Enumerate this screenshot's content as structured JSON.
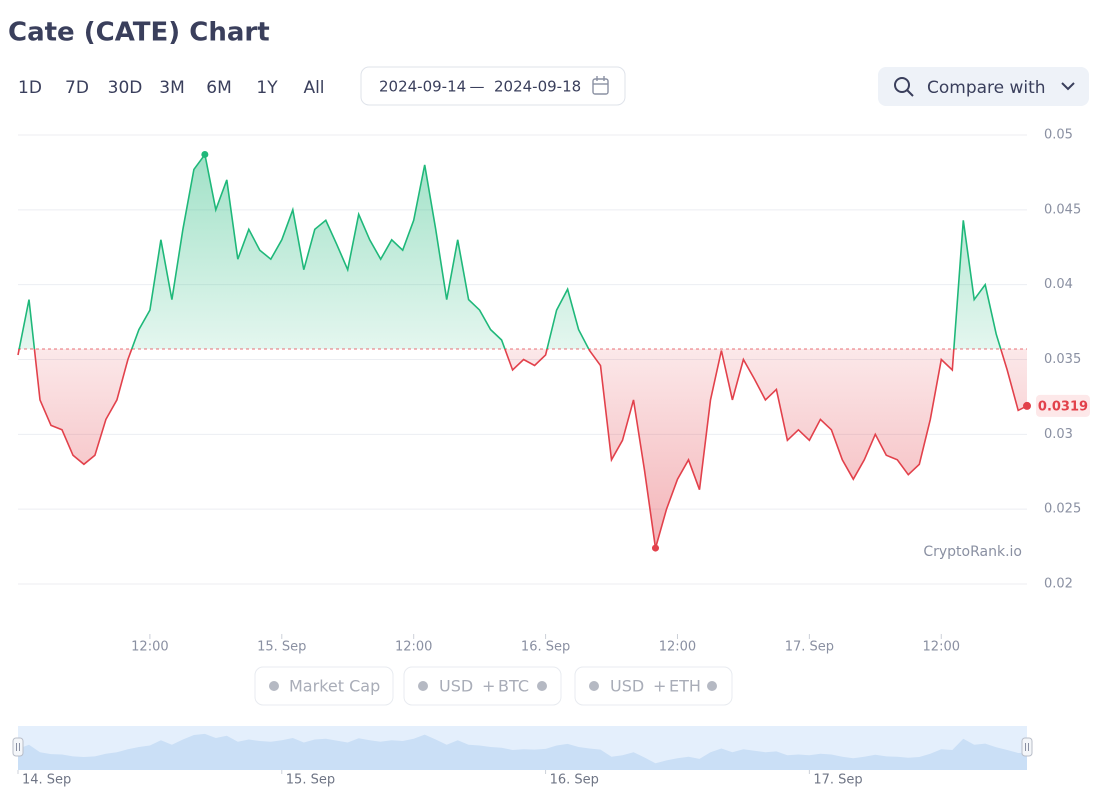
{
  "header": {
    "ranges": [
      "1D",
      "7D",
      "30D",
      "3M",
      "6M",
      "1Y",
      "All"
    ],
    "date_from": "2024-09-14",
    "date_sep": "—",
    "date_to": "2024-09-18",
    "compare": "Compare with"
  },
  "toggles": {
    "market_cap": "Market Cap",
    "btc": [
      "USD",
      "+",
      "BTC"
    ],
    "eth": [
      "USD",
      "+",
      "ETH"
    ]
  },
  "chart_data": {
    "type": "baseline-line",
    "title": "Cate (CATE) Chart",
    "watermark": "CryptoRank.io",
    "up_color": "#1fb87a",
    "down_color": "#e2414b",
    "baseline": 0.0357,
    "x": [
      0,
      1,
      2,
      3,
      4,
      5,
      6,
      7,
      8,
      9,
      10,
      11,
      12,
      13,
      14,
      15,
      16,
      17,
      18,
      19,
      20,
      21,
      22,
      23,
      24,
      25,
      26,
      27,
      28,
      29,
      30,
      31,
      32,
      33,
      34,
      35,
      36,
      37,
      38,
      39,
      40,
      41,
      42,
      43,
      44,
      45,
      46,
      47,
      48,
      49,
      50,
      51,
      52,
      53,
      54,
      55,
      56,
      57,
      58,
      59,
      60,
      61,
      62,
      63,
      64,
      65,
      66,
      67,
      68,
      69,
      70,
      71,
      72,
      73,
      74,
      75,
      76,
      77,
      78,
      79,
      80,
      81,
      82,
      83,
      84,
      85,
      86,
      87,
      88,
      89,
      90,
      91,
      91.8
    ],
    "values": [
      0.0353,
      0.039,
      0.0323,
      0.0306,
      0.0303,
      0.0286,
      0.028,
      0.0286,
      0.031,
      0.0323,
      0.035,
      0.037,
      0.0383,
      0.043,
      0.039,
      0.0437,
      0.0477,
      0.0487,
      0.045,
      0.047,
      0.0417,
      0.0437,
      0.0423,
      0.0417,
      0.043,
      0.045,
      0.041,
      0.0437,
      0.0443,
      0.0427,
      0.041,
      0.0447,
      0.043,
      0.0417,
      0.043,
      0.0423,
      0.0443,
      0.048,
      0.0437,
      0.039,
      0.043,
      0.039,
      0.0383,
      0.037,
      0.0363,
      0.0343,
      0.035,
      0.0346,
      0.0353,
      0.0383,
      0.0397,
      0.037,
      0.0356,
      0.0346,
      0.0283,
      0.0296,
      0.0323,
      0.0276,
      0.0224,
      0.025,
      0.027,
      0.0283,
      0.0263,
      0.0323,
      0.0356,
      0.0323,
      0.035,
      0.0337,
      0.0323,
      0.033,
      0.0296,
      0.0303,
      0.0296,
      0.031,
      0.0303,
      0.0283,
      0.027,
      0.0283,
      0.03,
      0.0286,
      0.0283,
      0.0273,
      0.028,
      0.031,
      0.035,
      0.0343,
      0.0443,
      0.039,
      0.04,
      0.0367,
      0.0343,
      0.0316,
      0.0319
    ],
    "xlim": [
      0,
      91.8
    ],
    "xticks": [
      {
        "value": 12,
        "label": "12:00"
      },
      {
        "value": 24,
        "label": "15. Sep"
      },
      {
        "value": 36,
        "label": "12:00"
      },
      {
        "value": 48,
        "label": "16. Sep"
      },
      {
        "value": 60,
        "label": "12:00"
      },
      {
        "value": 72,
        "label": "17. Sep"
      },
      {
        "value": 84,
        "label": "12:00"
      }
    ],
    "navigator_xticks": [
      {
        "value": 0,
        "label": "14. Sep"
      },
      {
        "value": 24,
        "label": "15. Sep"
      },
      {
        "value": 48,
        "label": "16. Sep"
      },
      {
        "value": 72,
        "label": "17. Sep"
      }
    ],
    "ylim": [
      0.02,
      0.05
    ],
    "yticks": [
      0.02,
      0.025,
      0.03,
      0.035,
      0.04,
      0.045,
      0.05
    ],
    "grid": true
  }
}
